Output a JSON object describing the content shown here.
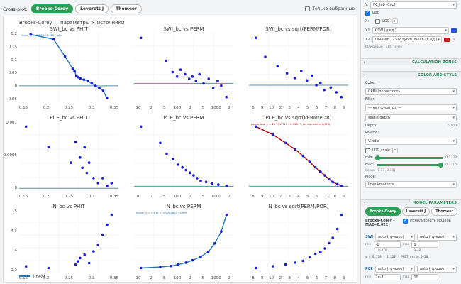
{
  "toolbar": {
    "label": "Cross-plot:",
    "tabs": [
      "Brooks-Corey",
      "Leverett J",
      "Thomeer"
    ],
    "only_selected_label": "Только выбранные"
  },
  "plot": {
    "title": "Brooks-Corey — параметры × источники",
    "legend_label": "linear"
  },
  "chart_data": [
    {
      "type": "scatter",
      "title": "SWI_bc vs PHIT",
      "x": [
        0.13,
        0.19,
        0.22,
        0.24,
        0.245,
        0.25,
        0.255,
        0.26,
        0.27,
        0.28,
        0.29,
        0.3,
        0.31,
        0.32,
        0.33
      ],
      "y": [
        0.21,
        0.19,
        0.12,
        0.07,
        0.06,
        0.04,
        0.035,
        0.03,
        0.025,
        0.02,
        0.01,
        0.0,
        -0.01,
        -0.02,
        -0.05
      ],
      "fit_label": "linear: y = 0.378 - 1.322 * phit",
      "xlim": [
        0.1,
        0.36
      ],
      "ylim": [
        -0.07,
        0.22
      ],
      "xticks": [
        "0.15",
        "0.2",
        "0.25",
        "0.3",
        "0.35"
      ],
      "yticks": [
        "0.2",
        "0.15",
        "0.1",
        "0.05",
        "0",
        "-0.05"
      ]
    },
    {
      "type": "scatter",
      "title": "SWI_bc vs PERM",
      "x": [
        12,
        60,
        90,
        120,
        150,
        200,
        260,
        320,
        400,
        500,
        650,
        900,
        1200,
        1600,
        2000,
        2800
      ],
      "y": [
        0.2,
        0.1,
        0.05,
        0.03,
        0.06,
        0.04,
        0.02,
        0.03,
        0.01,
        0.04,
        0.0,
        0.02,
        -0.02,
        0.01,
        -0.01,
        -0.06
      ],
      "xscale": "log",
      "xticks": [
        "10",
        "2",
        "5",
        "100",
        "2",
        "5",
        "1000",
        "2"
      ]
    },
    {
      "type": "scatter",
      "title": "SWI_bc vs sqrt(PERM/POR)",
      "x": [
        12,
        15,
        20,
        25,
        30,
        35,
        40,
        45,
        50,
        55,
        60,
        70,
        80,
        90
      ],
      "y": [
        0.2,
        0.12,
        0.08,
        0.05,
        0.03,
        0.06,
        0.02,
        0.04,
        0.0,
        0.01,
        -0.02,
        -0.01,
        -0.03,
        -0.05
      ],
      "xscale": "log",
      "xticks": [
        "8",
        "9",
        "10",
        "2",
        "3",
        "4",
        "5",
        "6",
        "7",
        "8",
        "9"
      ]
    },
    {
      "type": "scatter",
      "title": "PCE_bc vs PHIT",
      "x": [
        0.13,
        0.18,
        0.23,
        0.24,
        0.25,
        0.255,
        0.26,
        0.265,
        0.27,
        0.28,
        0.29,
        0.3,
        0.31,
        0.32
      ],
      "y": [
        0.0012,
        0.0008,
        0.0005,
        0.0009,
        0.0006,
        0.0004,
        0.0008,
        0.0003,
        0.0005,
        0.0002,
        0.0001,
        0.0002,
        5e-05,
        0.0001
      ],
      "xticks": [
        "0.15",
        "0.2",
        "0.25",
        "0.3",
        "0.35"
      ],
      "yticks": [
        "0.001",
        "0.0005",
        "0"
      ]
    },
    {
      "type": "scatter",
      "title": "PCE_bc vs PERM",
      "x": [
        12,
        40,
        60,
        90,
        120,
        160,
        200,
        260,
        320,
        400,
        500,
        700,
        1000,
        1500,
        2500
      ],
      "y": [
        0.0011,
        0.0008,
        0.0006,
        0.0005,
        0.0004,
        0.00035,
        0.0003,
        0.00025,
        0.0002,
        0.00015,
        0.0001,
        8e-05,
        5e-05,
        3e-05,
        1e-05
      ],
      "xscale": "log",
      "xticks": [
        "10",
        "2",
        "5",
        "100",
        "2",
        "5",
        "1000",
        "2"
      ]
    },
    {
      "type": "scatter",
      "title": "PCE_bc vs sqrt(PERM/POR)",
      "x": [
        12,
        18,
        24,
        30,
        36,
        42,
        48,
        54,
        60,
        66,
        72,
        80,
        88
      ],
      "y": [
        0.0011,
        0.00095,
        0.0008,
        0.00068,
        0.00056,
        0.00045,
        0.00035,
        0.00027,
        0.0002,
        0.00013,
        8e-05,
        4e-05,
        1e-05
      ],
      "fit_label": "power-law: y = 10^(-2.715 - 0.0551*) (or equivalent) (PHI)",
      "xscale": "log",
      "xticks": [
        "8",
        "9",
        "10",
        "2",
        "3",
        "4",
        "5",
        "6",
        "7",
        "8",
        "9"
      ]
    },
    {
      "type": "scatter",
      "title": "N_bc vs PHIT",
      "x": [
        0.13,
        0.18,
        0.24,
        0.245,
        0.25,
        0.26,
        0.27,
        0.28,
        0.29,
        0.3,
        0.31,
        0.32
      ],
      "y": [
        3.65,
        3.6,
        3.7,
        3.8,
        3.9,
        4.0,
        3.75,
        4.1,
        4.3,
        4.6,
        4.9,
        5.2
      ],
      "xticks": [
        "0.15",
        "0.2",
        "0.25",
        "0.3",
        "0.35"
      ],
      "yticks": [
        "5",
        "4.5",
        "4",
        "3.5"
      ]
    },
    {
      "type": "scatter",
      "title": "N_bc vs PERM",
      "x": [
        12,
        40,
        80,
        120,
        200,
        300,
        500,
        800,
        1200,
        1800,
        2500
      ],
      "y": [
        3.62,
        3.65,
        3.68,
        3.72,
        3.78,
        3.85,
        3.95,
        4.1,
        4.35,
        4.7,
        5.2
      ],
      "fit_label": "linear: y = 3.611 + 0.0006890 * perm",
      "xscale": "log",
      "xticks": [
        "10",
        "2",
        "5",
        "100",
        "2",
        "5",
        "1000",
        "2"
      ]
    },
    {
      "type": "scatter",
      "title": "N_bc vs sqrt(PERM/POR)",
      "x": [
        12,
        18,
        24,
        30,
        36,
        42,
        48,
        54,
        60,
        66,
        72,
        80,
        88
      ],
      "y": [
        3.6,
        3.65,
        3.7,
        3.75,
        3.8,
        3.9,
        4.0,
        4.05,
        4.15,
        4.3,
        4.45,
        4.7,
        5.1
      ],
      "xscale": "log",
      "xticks": [
        "8",
        "9",
        "10",
        "2",
        "3",
        "4",
        "5",
        "6",
        "7",
        "8",
        "9"
      ]
    }
  ],
  "colors": {
    "accent": "#2e9e57",
    "points": "#1a1adb",
    "fit": "#1f77b4",
    "fit_red": "#b30000",
    "swatch_blue": "#1f4fd6",
    "swatch_red": "#d41a1a"
  },
  "panel": {
    "y_label": "Y:",
    "y_value": "PC_lab (бар)",
    "log1_label": "LOG",
    "x_label": "X:",
    "log2_label": "LOG",
    "x_add": "+",
    "x1_label": "X1",
    "x1_value": "CSW (д.ед.)",
    "x2_label": "X2",
    "x2_value": "Leverett J - Sw_synth_mean (д.ед.)",
    "count_text": "60 кривые · 480 точек",
    "calc_zones": "CALCULATION ZONES",
    "color_style": "COLOR AND STYLE",
    "color_label": "Color:",
    "color_value": "CPHI (пористость)",
    "filter_label": "Filter:",
    "filter_value": "— нет фильтра —",
    "depth_mode": "single depth",
    "depth_label": "Depth:",
    "depth_value": "50.00",
    "palette_label": "Palette:",
    "palette_value": "Viridis",
    "log_scale_label": "LOG scale",
    "min_label": "min:",
    "min_value": "0.1338",
    "max_label": "max:",
    "max_value": "0.3315",
    "linear_range": "linear: [0.13, 0.33]",
    "mode_label": "Mode:",
    "mode_value": "lines+markers",
    "model_params": "MODEL PARAMETERS",
    "model_tabs": [
      "Brooks-Corey",
      "Leverett J",
      "Thomeer"
    ],
    "model_title": "Brooks-Corey - MAE=0.022",
    "use_model_label": "Использовать модель",
    "swi_label": "SWI",
    "swi_mode1": "auto (лучшее)",
    "swi_mode2": "auto (лучшее)",
    "min_short": "min",
    "max_short": "max",
    "swi_min": "-1",
    "swi_max": "1",
    "swi_fit1": "0.378",
    "swi_fit2": "-1.32",
    "swi_eq": "y = 0.378 - 1.322 * PHIT  err=0.0220",
    "pce_label": "PCE",
    "pce_mode1": "auto (лучшее)",
    "pce_mode2": "auto (лучшее)",
    "pce_min": "1e-7",
    "pce_max": "10"
  }
}
